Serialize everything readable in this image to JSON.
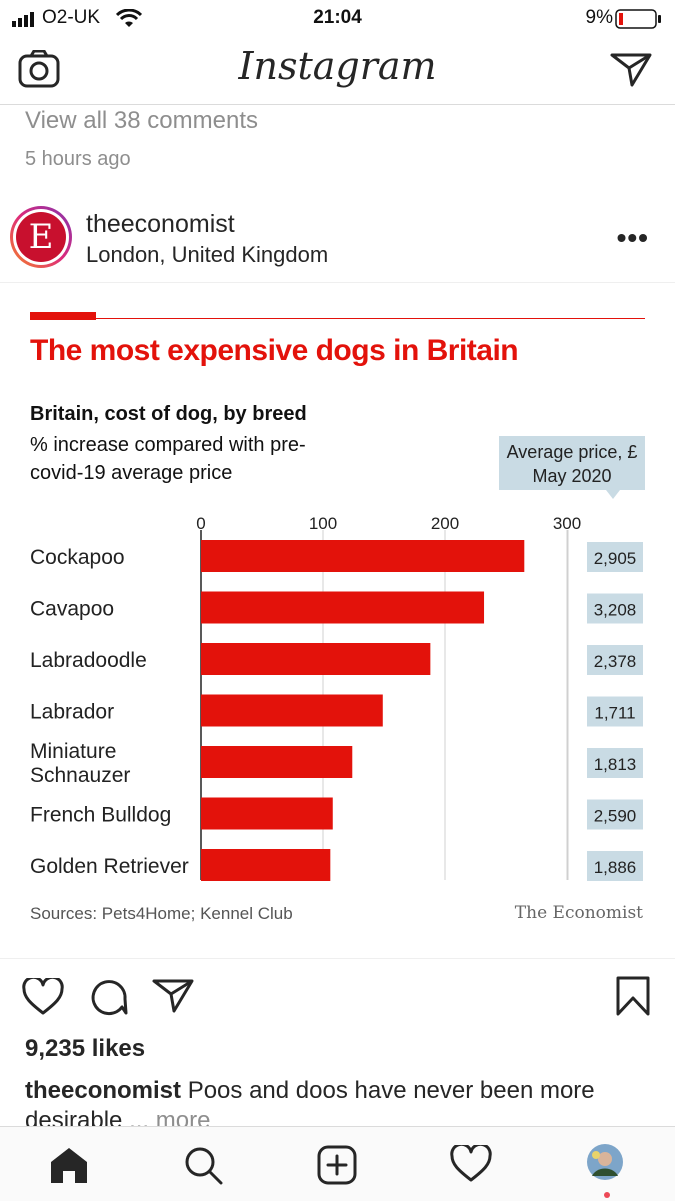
{
  "status_bar": {
    "carrier": "O2-UK",
    "time": "21:04",
    "battery": "9%"
  },
  "header": {
    "logo": "Instagram"
  },
  "previous_post": {
    "comments_link": "View all 38 comments",
    "time_ago": "5 hours ago"
  },
  "post": {
    "username": "theeconomist",
    "location": "London, United Kingdom",
    "avatar_letter": "E",
    "likes": "9,235 likes",
    "caption_user": "theeconomist",
    "caption_text": "Poos and doos have never been more desirable",
    "caption_more": "... more"
  },
  "chart_data": {
    "type": "bar",
    "orientation": "horizontal",
    "title": "The most expensive dogs in Britain",
    "subtitle_bold": "Britain, cost of dog, by breed",
    "subtitle": "% increase compared with pre-covid-19 average price",
    "side_header": "Average price, £ May 2020",
    "categories": [
      "Cockapoo",
      "Cavapoo",
      "Labradoodle",
      "Labrador",
      "Miniature Schnauzer",
      "French Bulldog",
      "Golden Retriever"
    ],
    "values": [
      265,
      232,
      188,
      149,
      124,
      108,
      106
    ],
    "avg_prices": [
      "2,905",
      "3,208",
      "2,378",
      "1,711",
      "1,813",
      "2,590",
      "1,886"
    ],
    "ticks": [
      0,
      100,
      200,
      300
    ],
    "xlim": [
      0,
      300
    ],
    "source": "Sources: Pets4Home; Kennel Club",
    "brand": "The Economist",
    "colors": {
      "bar": "#e3120b",
      "accent": "#e3120b",
      "price_box": "#c9dbe4"
    }
  },
  "tabbar": {
    "items": [
      "home",
      "search",
      "new-post",
      "activity",
      "profile"
    ]
  }
}
